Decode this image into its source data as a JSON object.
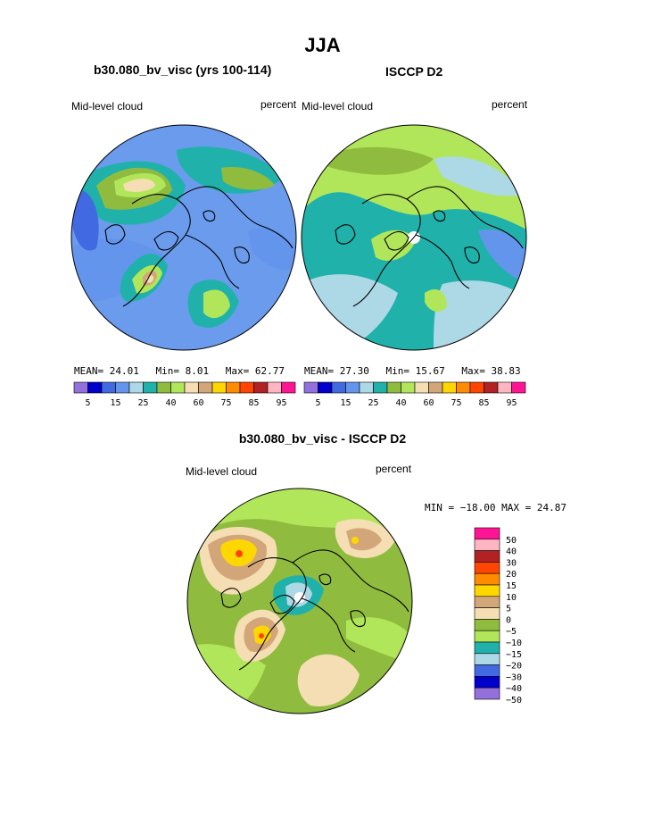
{
  "title": "JJA",
  "panels": {
    "left": {
      "title": "b30.080_bv_visc (yrs 100-114)",
      "left_label": "Mid-level cloud",
      "right_label": "percent",
      "stats": {
        "mean_label": "MEAN=",
        "mean": "24.01",
        "min_label": "Min=",
        "min": "8.01",
        "max_label": "Max=",
        "max": "62.77"
      }
    },
    "right": {
      "title": "ISCCP D2",
      "left_label": "Mid-level cloud",
      "right_label": "percent",
      "stats": {
        "mean_label": "MEAN=",
        "mean": "27.30",
        "min_label": "Min=",
        "min": "15.67",
        "max_label": "Max=",
        "max": "38.83"
      }
    },
    "diff": {
      "title": "b30.080_bv_visc - ISCCP D2",
      "left_label": "Mid-level cloud",
      "right_label": "percent",
      "minmax": "MIN = −18.00 MAX =  24.87"
    }
  },
  "colorbar_main": {
    "colors": [
      "#9370db",
      "#0000cd",
      "#4169e1",
      "#6495ed",
      "#add8e6",
      "#20b2aa",
      "#8fbc3f",
      "#b2e65a",
      "#f5deb3",
      "#d2a679",
      "#ffd700",
      "#ff8c00",
      "#ff4500",
      "#b22222",
      "#ffb6c1",
      "#ff1493"
    ],
    "labels": [
      "5",
      "15",
      "25",
      "40",
      "60",
      "75",
      "85",
      "95"
    ]
  },
  "colorbar_diff": {
    "colors": [
      "#ff1493",
      "#ffb6c1",
      "#b22222",
      "#ff4500",
      "#ff8c00",
      "#ffd700",
      "#d2a679",
      "#f5deb3",
      "#8fbc3f",
      "#b2e65a",
      "#20b2aa",
      "#add8e6",
      "#4169e1",
      "#0000cd",
      "#9370db"
    ],
    "labels": [
      "50",
      "40",
      "30",
      "20",
      "15",
      "10",
      "5",
      "0",
      "−5",
      "−10",
      "−15",
      "−20",
      "−30",
      "−40",
      "−50"
    ]
  }
}
